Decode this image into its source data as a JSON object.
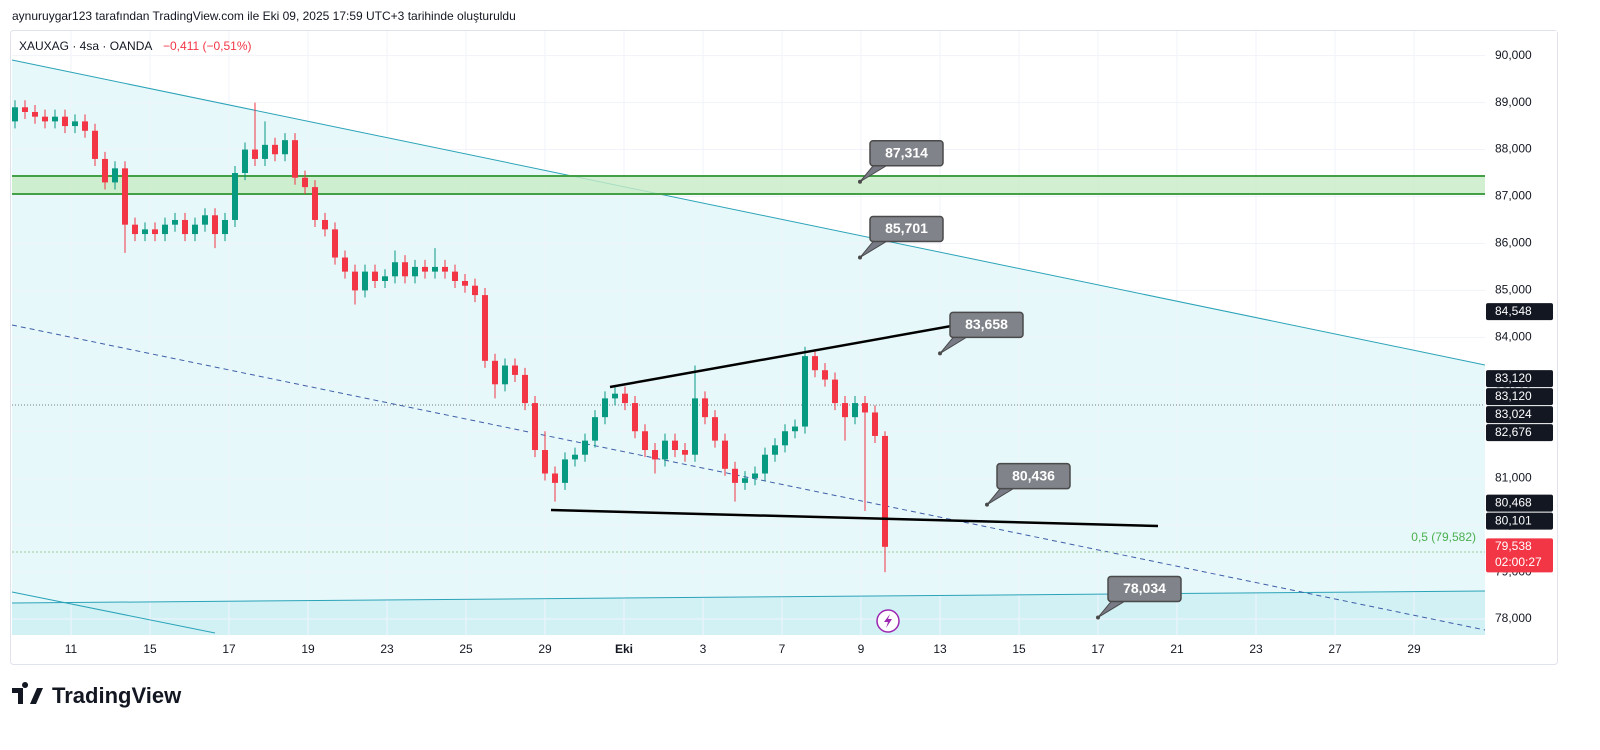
{
  "header": "aynuruygar123 tarafından TradingView.com ile Eki 09, 2025 17:59 UTC+3 tarihinde oluşturuldu",
  "chart_data": {
    "type": "candlestick",
    "title": "XAUXAG · 4sa · OANDA",
    "change": "−0,411 (−0,51%)",
    "categories": [
      "11",
      "15",
      "17",
      "19",
      "23",
      "25",
      "29",
      "Eki",
      "3",
      "7",
      "9",
      "13",
      "15",
      "17",
      "21",
      "23",
      "27",
      "29"
    ],
    "open": [
      88.6,
      88.9,
      88.8,
      88.7,
      88.6,
      88.7,
      88.5,
      88.6,
      88.4,
      87.8,
      87.3,
      87.6,
      86.4,
      86.2,
      86.3,
      86.2,
      86.4,
      86.5,
      86.2,
      86.4,
      86.6,
      86.2,
      86.5,
      87.5,
      88.0,
      87.8,
      88.1,
      87.9,
      88.2,
      87.4,
      87.2,
      86.5,
      86.3,
      85.7,
      85.4,
      85.0,
      85.4,
      85.2,
      85.3,
      85.6,
      85.3,
      85.5,
      85.4,
      85.5,
      85.4,
      85.2,
      85.1,
      84.9,
      83.5,
      83.0,
      83.4,
      83.2,
      82.6,
      81.6,
      81.1,
      80.9,
      81.4,
      81.5,
      81.8,
      82.3,
      82.7,
      82.8,
      82.6,
      82.0,
      81.6,
      81.4,
      81.8,
      81.6,
      81.5,
      82.7,
      82.3,
      81.8,
      81.2,
      80.9,
      81.0,
      81.1,
      81.5,
      81.7,
      82.0,
      82.1,
      83.6,
      83.3,
      83.1,
      82.6,
      82.3,
      82.6,
      82.4,
      81.9
    ],
    "high": [
      89.05,
      89.05,
      88.95,
      88.85,
      88.85,
      88.85,
      88.75,
      88.75,
      88.55,
      87.95,
      87.75,
      87.75,
      86.55,
      86.45,
      86.45,
      86.55,
      86.65,
      86.65,
      86.55,
      86.75,
      86.75,
      86.65,
      87.65,
      88.15,
      89.0,
      88.6,
      88.25,
      88.35,
      88.35,
      87.55,
      87.35,
      86.65,
      86.45,
      85.85,
      85.55,
      85.55,
      85.55,
      85.45,
      85.85,
      85.75,
      85.65,
      85.65,
      85.9,
      85.65,
      85.55,
      85.35,
      85.25,
      85.05,
      83.65,
      83.55,
      83.55,
      83.35,
      82.75,
      82.0,
      81.25,
      81.55,
      81.65,
      81.95,
      82.45,
      82.85,
      82.95,
      82.95,
      82.75,
      82.15,
      81.75,
      81.95,
      81.95,
      81.75,
      83.4,
      82.85,
      82.45,
      81.95,
      81.35,
      81.15,
      81.25,
      81.65,
      81.85,
      82.15,
      82.25,
      83.8,
      83.75,
      83.45,
      83.25,
      82.75,
      82.75,
      82.75,
      82.55,
      82.0
    ],
    "low": [
      88.45,
      88.65,
      88.55,
      88.45,
      88.45,
      88.35,
      88.35,
      88.25,
      87.65,
      87.15,
      87.15,
      85.8,
      86.05,
      86.05,
      86.05,
      86.05,
      86.25,
      86.05,
      86.05,
      86.25,
      85.9,
      86.05,
      86.35,
      87.35,
      87.65,
      87.65,
      87.75,
      87.75,
      87.25,
      87.05,
      86.35,
      86.15,
      85.55,
      85.25,
      84.7,
      84.85,
      85.05,
      85.05,
      85.15,
      85.15,
      85.15,
      85.25,
      85.25,
      85.25,
      85.05,
      84.95,
      84.75,
      83.35,
      82.7,
      82.85,
      83.05,
      82.45,
      81.45,
      80.95,
      80.5,
      80.75,
      81.25,
      81.35,
      81.65,
      82.15,
      82.55,
      82.45,
      81.85,
      81.45,
      81.1,
      81.25,
      81.45,
      81.35,
      81.35,
      82.15,
      81.65,
      81.05,
      80.5,
      80.75,
      80.85,
      80.95,
      81.35,
      81.55,
      81.85,
      81.95,
      83.15,
      82.95,
      82.45,
      81.8,
      82.15,
      80.3,
      81.75,
      79.0
    ],
    "close": [
      88.9,
      88.8,
      88.7,
      88.6,
      88.7,
      88.5,
      88.6,
      88.4,
      87.8,
      87.3,
      87.6,
      86.4,
      86.2,
      86.3,
      86.2,
      86.4,
      86.5,
      86.2,
      86.4,
      86.6,
      86.2,
      86.5,
      87.5,
      88.0,
      87.8,
      88.1,
      87.9,
      88.2,
      87.4,
      87.2,
      86.5,
      86.3,
      85.7,
      85.4,
      85.0,
      85.4,
      85.2,
      85.3,
      85.6,
      85.3,
      85.5,
      85.4,
      85.5,
      85.4,
      85.2,
      85.1,
      84.9,
      83.5,
      83.0,
      83.4,
      83.2,
      82.6,
      81.6,
      81.1,
      80.9,
      81.4,
      81.5,
      81.8,
      82.3,
      82.7,
      82.8,
      82.6,
      82.0,
      81.6,
      81.4,
      81.8,
      81.6,
      81.5,
      82.7,
      82.3,
      81.8,
      81.2,
      80.9,
      81.0,
      81.1,
      81.5,
      81.7,
      82.0,
      82.1,
      83.6,
      83.3,
      83.1,
      82.6,
      82.3,
      82.6,
      82.4,
      81.9,
      79.538
    ],
    "up_color": "#089981",
    "down_color": "#f23645",
    "ylim": [
      77.66,
      90.525
    ],
    "yticks": [
      {
        "value": 90,
        "label": "90,000"
      },
      {
        "value": 89,
        "label": "89,000"
      },
      {
        "value": 88,
        "label": "88,000"
      },
      {
        "value": 87,
        "label": "87,000"
      },
      {
        "value": 86,
        "label": "86,000"
      },
      {
        "value": 85,
        "label": "85,000"
      },
      {
        "value": 84,
        "label": "84,000"
      },
      {
        "value": 83,
        "label": "83,000"
      },
      {
        "value": 82,
        "label": "82,000"
      },
      {
        "value": 81,
        "label": "81,000"
      },
      {
        "value": 80,
        "label": "80,000"
      },
      {
        "value": 79,
        "label": "79,000"
      },
      {
        "value": 78,
        "label": "78,000"
      }
    ],
    "grid": true,
    "price_labels": [
      {
        "value": 84.548,
        "label": "84,548",
        "color": "#131722"
      },
      {
        "value": 83.12,
        "label": "83,120",
        "color": "#131722"
      },
      {
        "value": 83.12,
        "label": "83,120",
        "color": "#131722"
      },
      {
        "value": 83.024,
        "label": "83,024",
        "color": "#131722"
      },
      {
        "value": 82.676,
        "label": "82,676",
        "color": "#131722"
      },
      {
        "value": 80.468,
        "label": "80,468",
        "color": "#131722"
      },
      {
        "value": 80.101,
        "label": "80,101",
        "color": "#131722"
      },
      {
        "value": 79.538,
        "label": "79,538",
        "color": "#f23645"
      }
    ],
    "countdown": "02:00:27",
    "annotations": [
      {
        "value": 87.314,
        "label": "87,314"
      },
      {
        "value": 85.701,
        "label": "85,701"
      },
      {
        "value": 83.658,
        "label": "83,658"
      },
      {
        "value": 80.436,
        "label": "80,436"
      },
      {
        "value": 78.034,
        "label": "78,034"
      }
    ],
    "fib_label": "0,5 (79,582)"
  },
  "footer": "TradingView"
}
